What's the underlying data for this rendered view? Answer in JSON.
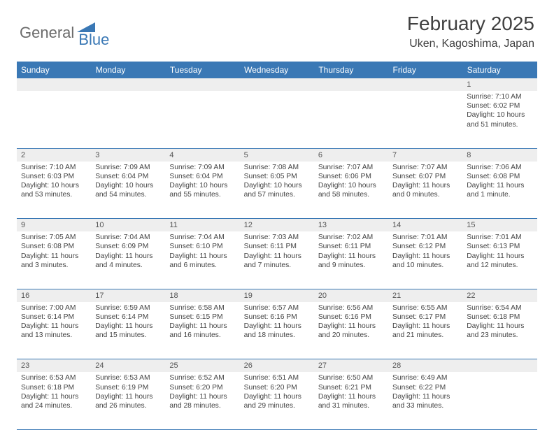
{
  "logo": {
    "text1": "General",
    "text2": "Blue"
  },
  "title": "February 2025",
  "location": "Uken, Kagoshima, Japan",
  "colors": {
    "header_bg": "#3a78b5",
    "header_text": "#ffffff",
    "daynum_bg": "#eeeeee",
    "border": "#3a78b5",
    "body_text": "#444444"
  },
  "day_headers": [
    "Sunday",
    "Monday",
    "Tuesday",
    "Wednesday",
    "Thursday",
    "Friday",
    "Saturday"
  ],
  "weeks": [
    {
      "nums": [
        "",
        "",
        "",
        "",
        "",
        "",
        "1"
      ],
      "cells": [
        null,
        null,
        null,
        null,
        null,
        null,
        {
          "sunrise": "7:10 AM",
          "sunset": "6:02 PM",
          "daylight": "10 hours and 51 minutes."
        }
      ]
    },
    {
      "nums": [
        "2",
        "3",
        "4",
        "5",
        "6",
        "7",
        "8"
      ],
      "cells": [
        {
          "sunrise": "7:10 AM",
          "sunset": "6:03 PM",
          "daylight": "10 hours and 53 minutes."
        },
        {
          "sunrise": "7:09 AM",
          "sunset": "6:04 PM",
          "daylight": "10 hours and 54 minutes."
        },
        {
          "sunrise": "7:09 AM",
          "sunset": "6:04 PM",
          "daylight": "10 hours and 55 minutes."
        },
        {
          "sunrise": "7:08 AM",
          "sunset": "6:05 PM",
          "daylight": "10 hours and 57 minutes."
        },
        {
          "sunrise": "7:07 AM",
          "sunset": "6:06 PM",
          "daylight": "10 hours and 58 minutes."
        },
        {
          "sunrise": "7:07 AM",
          "sunset": "6:07 PM",
          "daylight": "11 hours and 0 minutes."
        },
        {
          "sunrise": "7:06 AM",
          "sunset": "6:08 PM",
          "daylight": "11 hours and 1 minute."
        }
      ]
    },
    {
      "nums": [
        "9",
        "10",
        "11",
        "12",
        "13",
        "14",
        "15"
      ],
      "cells": [
        {
          "sunrise": "7:05 AM",
          "sunset": "6:08 PM",
          "daylight": "11 hours and 3 minutes."
        },
        {
          "sunrise": "7:04 AM",
          "sunset": "6:09 PM",
          "daylight": "11 hours and 4 minutes."
        },
        {
          "sunrise": "7:04 AM",
          "sunset": "6:10 PM",
          "daylight": "11 hours and 6 minutes."
        },
        {
          "sunrise": "7:03 AM",
          "sunset": "6:11 PM",
          "daylight": "11 hours and 7 minutes."
        },
        {
          "sunrise": "7:02 AM",
          "sunset": "6:11 PM",
          "daylight": "11 hours and 9 minutes."
        },
        {
          "sunrise": "7:01 AM",
          "sunset": "6:12 PM",
          "daylight": "11 hours and 10 minutes."
        },
        {
          "sunrise": "7:01 AM",
          "sunset": "6:13 PM",
          "daylight": "11 hours and 12 minutes."
        }
      ]
    },
    {
      "nums": [
        "16",
        "17",
        "18",
        "19",
        "20",
        "21",
        "22"
      ],
      "cells": [
        {
          "sunrise": "7:00 AM",
          "sunset": "6:14 PM",
          "daylight": "11 hours and 13 minutes."
        },
        {
          "sunrise": "6:59 AM",
          "sunset": "6:14 PM",
          "daylight": "11 hours and 15 minutes."
        },
        {
          "sunrise": "6:58 AM",
          "sunset": "6:15 PM",
          "daylight": "11 hours and 16 minutes."
        },
        {
          "sunrise": "6:57 AM",
          "sunset": "6:16 PM",
          "daylight": "11 hours and 18 minutes."
        },
        {
          "sunrise": "6:56 AM",
          "sunset": "6:16 PM",
          "daylight": "11 hours and 20 minutes."
        },
        {
          "sunrise": "6:55 AM",
          "sunset": "6:17 PM",
          "daylight": "11 hours and 21 minutes."
        },
        {
          "sunrise": "6:54 AM",
          "sunset": "6:18 PM",
          "daylight": "11 hours and 23 minutes."
        }
      ]
    },
    {
      "nums": [
        "23",
        "24",
        "25",
        "26",
        "27",
        "28",
        ""
      ],
      "cells": [
        {
          "sunrise": "6:53 AM",
          "sunset": "6:18 PM",
          "daylight": "11 hours and 24 minutes."
        },
        {
          "sunrise": "6:53 AM",
          "sunset": "6:19 PM",
          "daylight": "11 hours and 26 minutes."
        },
        {
          "sunrise": "6:52 AM",
          "sunset": "6:20 PM",
          "daylight": "11 hours and 28 minutes."
        },
        {
          "sunrise": "6:51 AM",
          "sunset": "6:20 PM",
          "daylight": "11 hours and 29 minutes."
        },
        {
          "sunrise": "6:50 AM",
          "sunset": "6:21 PM",
          "daylight": "11 hours and 31 minutes."
        },
        {
          "sunrise": "6:49 AM",
          "sunset": "6:22 PM",
          "daylight": "11 hours and 33 minutes."
        },
        null
      ]
    }
  ],
  "labels": {
    "sunrise": "Sunrise:",
    "sunset": "Sunset:",
    "daylight": "Daylight:"
  }
}
